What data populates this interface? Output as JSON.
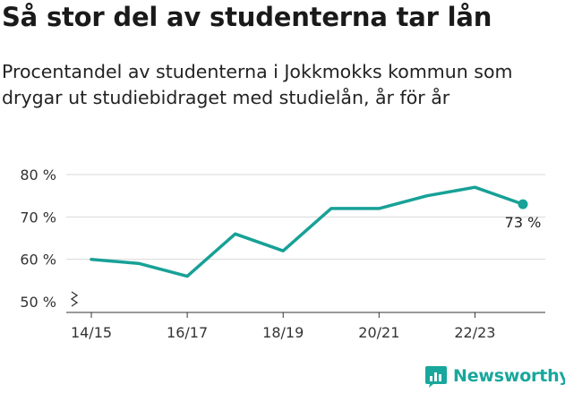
{
  "title": "Så stor del av studenterna tar lån",
  "subtitle": "Procentandel av studenterna i Jokkmokks kommun som drygar ut studiebidraget med studielån, år för år",
  "brand": {
    "name": "Newsworthy",
    "icon": "newsworthy-chart-icon",
    "color": "#18a79c"
  },
  "colors": {
    "line": "#17a197",
    "grid": "#d9d9d9",
    "axis": "#333333"
  },
  "chart_data": {
    "type": "line",
    "title": "Så stor del av studenterna tar lån",
    "subtitle": "Procentandel av studenterna i Jokkmokks kommun som drygar ut studiebidraget med studielån, år för år",
    "x": [
      "14/15",
      "15/16",
      "16/17",
      "17/18",
      "18/19",
      "19/20",
      "20/21",
      "21/22",
      "22/23",
      "23/24"
    ],
    "xticks": [
      "14/15",
      "16/17",
      "18/19",
      "20/21",
      "22/23"
    ],
    "series": [
      {
        "values": [
          60,
          59,
          56,
          66,
          62,
          72,
          72,
          75,
          77,
          73
        ]
      }
    ],
    "ylim": [
      50,
      80
    ],
    "yticks": [
      50,
      60,
      70,
      80
    ],
    "ytick_labels": [
      "50 %",
      "60 %",
      "70 %",
      "80 %"
    ],
    "y_axis_break": true,
    "grid": true,
    "end_label": "73 %"
  }
}
